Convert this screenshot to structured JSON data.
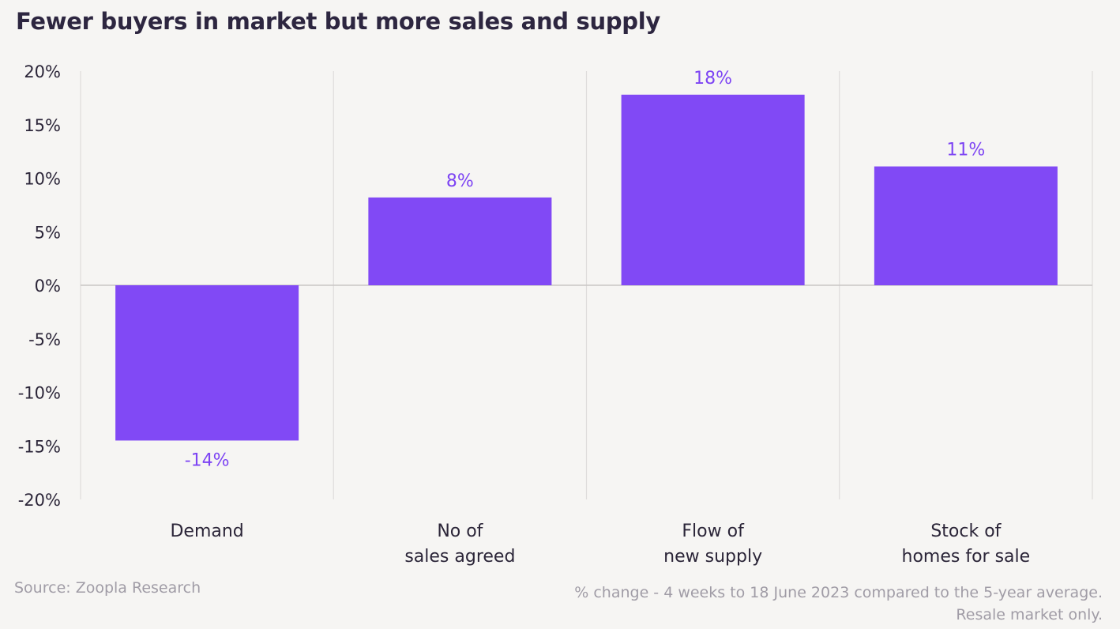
{
  "title": "Fewer buyers in market but more sales and supply",
  "footer": {
    "source": "Source: Zoopla Research",
    "note_line1": "% change - 4 weeks to 18 June 2023 compared to the 5-year average.",
    "note_line2": "Resale market only."
  },
  "colors": {
    "bar": "#8149f5",
    "data_label": "#7d44f3",
    "gridline": "#dedcdb",
    "zero_line": "#c9c6c5",
    "background": "#f6f5f3"
  },
  "chart_data": {
    "type": "bar",
    "categories": [
      [
        "Demand"
      ],
      [
        "No of",
        "sales agreed"
      ],
      [
        "Flow of",
        "new supply"
      ],
      [
        "Stock of",
        "homes for sale"
      ]
    ],
    "values": [
      -14.5,
      8.2,
      17.8,
      11.1
    ],
    "data_labels": [
      "-14%",
      "8%",
      "18%",
      "11%"
    ],
    "ylim": [
      -20,
      20
    ],
    "yticks": [
      20,
      15,
      10,
      5,
      0,
      -5,
      -10,
      -15,
      -20
    ],
    "ytick_labels": [
      "20%",
      "15%",
      "10%",
      "5%",
      "0%",
      "-5%",
      "-10%",
      "-15%",
      "-20%"
    ],
    "grid": "vertical separators",
    "legend": "none"
  }
}
